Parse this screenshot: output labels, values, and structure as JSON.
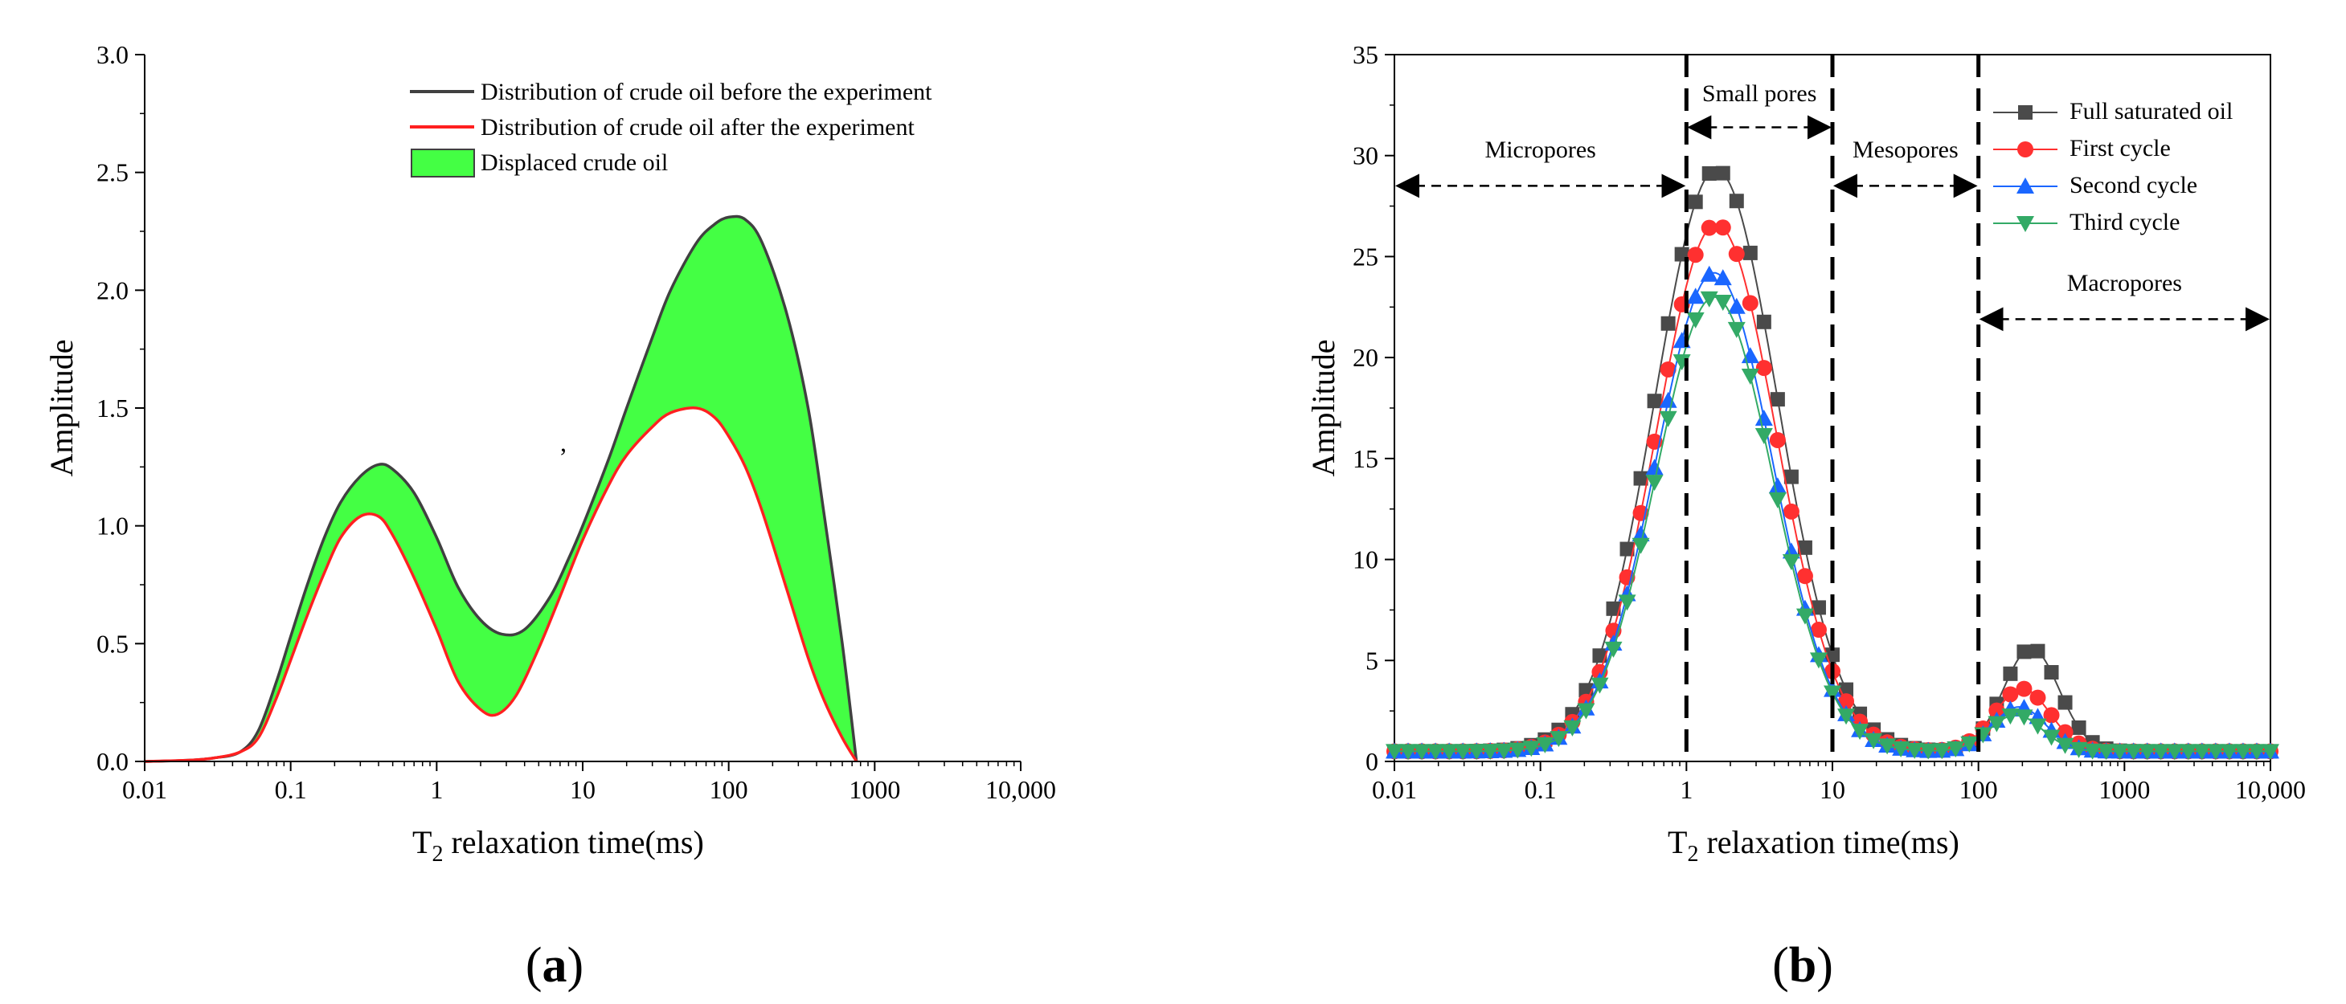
{
  "chart_data": [
    {
      "panel": "a",
      "type": "area",
      "panel_label_open": "(",
      "panel_label_letter": "a",
      "panel_label_close": ")",
      "xlabel_main": "T",
      "xlabel_sub": "2",
      "xlabel_rest": "  relaxation time(ms)",
      "ylabel": "Amplitude",
      "xscale": "log",
      "xlim": [
        0.01,
        10000
      ],
      "ylim": [
        0,
        3.0
      ],
      "x_tick_labels": [
        "0.01",
        "0.1",
        "1",
        "10",
        "100",
        "1000",
        "10,000"
      ],
      "y_tick_labels": [
        "0.0",
        "0.5",
        "1.0",
        "1.5",
        "2.0",
        "2.5",
        "3.0"
      ],
      "legend_position": "top-right",
      "series": [
        {
          "name": "Distribution of crude oil before the experiment",
          "color": "#404040",
          "x": [
            0.01,
            0.02,
            0.03,
            0.045,
            0.06,
            0.08,
            0.1,
            0.13,
            0.17,
            0.22,
            0.3,
            0.4,
            0.5,
            0.7,
            1.0,
            1.4,
            2.0,
            2.8,
            4.0,
            6.0,
            8.0,
            10,
            15,
            20,
            30,
            40,
            60,
            80,
            100,
            130,
            170,
            250,
            350,
            450,
            600,
            750
          ],
          "y": [
            0.0,
            0.005,
            0.015,
            0.04,
            0.13,
            0.34,
            0.53,
            0.75,
            0.95,
            1.1,
            1.21,
            1.26,
            1.24,
            1.14,
            0.95,
            0.74,
            0.6,
            0.54,
            0.56,
            0.7,
            0.86,
            1.0,
            1.28,
            1.5,
            1.8,
            2.0,
            2.2,
            2.28,
            2.31,
            2.3,
            2.2,
            1.9,
            1.5,
            1.05,
            0.5,
            0.0
          ]
        },
        {
          "name": "Distribution of crude oil after the experiment",
          "color": "#ff2020",
          "x": [
            0.01,
            0.02,
            0.03,
            0.045,
            0.06,
            0.08,
            0.1,
            0.13,
            0.17,
            0.22,
            0.3,
            0.4,
            0.5,
            0.7,
            1.0,
            1.4,
            2.0,
            2.6,
            3.5,
            5.0,
            7.0,
            10,
            15,
            20,
            30,
            40,
            60,
            80,
            100,
            130,
            170,
            250,
            350,
            450,
            600,
            750
          ],
          "y": [
            0.0,
            0.005,
            0.015,
            0.04,
            0.1,
            0.27,
            0.43,
            0.62,
            0.8,
            0.95,
            1.04,
            1.04,
            0.96,
            0.78,
            0.56,
            0.34,
            0.22,
            0.2,
            0.28,
            0.48,
            0.7,
            0.94,
            1.17,
            1.3,
            1.42,
            1.48,
            1.5,
            1.46,
            1.38,
            1.25,
            1.06,
            0.73,
            0.44,
            0.26,
            0.1,
            0.0
          ]
        },
        {
          "name": "Displaced crude oil",
          "color": "#44ff44",
          "fill_between": [
            "Distribution of crude oil before the experiment",
            "Distribution of crude oil after the experiment"
          ]
        }
      ]
    },
    {
      "panel": "b",
      "type": "line",
      "panel_label_open": "(",
      "panel_label_letter": "b",
      "panel_label_close": ")",
      "xlabel_main": "T",
      "xlabel_sub": "2",
      "xlabel_rest": " relaxation time(ms)",
      "ylabel": "Amplitude",
      "xscale": "log",
      "xlim": [
        0.01,
        10000
      ],
      "ylim": [
        0,
        35
      ],
      "x_tick_labels": [
        "0.01",
        "0.1",
        "1",
        "10",
        "100",
        "1000",
        "10,000"
      ],
      "y_tick_labels": [
        "0",
        "5",
        "10",
        "15",
        "20",
        "25",
        "30",
        "35"
      ],
      "legend_position": "top-right",
      "vertical_lines": [
        1,
        10,
        100
      ],
      "annotations": [
        {
          "text": "Micropores",
          "x_from": 0.01,
          "x_to": 1,
          "arrow_y": 28.5,
          "text_y": 29.9
        },
        {
          "text": "Small pores",
          "x_from": 1,
          "x_to": 10,
          "arrow_y": 31.4,
          "text_y": 32.7
        },
        {
          "text": "Mesopores",
          "x_from": 10,
          "x_to": 100,
          "arrow_y": 28.5,
          "text_y": 29.9
        },
        {
          "text": "Macropores",
          "x_from": 100,
          "x_to": 10000,
          "arrow_y": 21.9,
          "text_y": 23.3
        }
      ],
      "series": [
        {
          "name": "Full saturated oil",
          "color": "#4a4a4a",
          "marker": "square",
          "peak1": 29.3,
          "peak1_x": 1.6,
          "peak2": 5.6,
          "peak2_x": 230,
          "sigma1": 0.42,
          "sigma2": 0.19
        },
        {
          "name": "First cycle",
          "color": "#ff3030",
          "marker": "circle",
          "peak1": 26.6,
          "peak1_x": 1.6,
          "peak2": 3.6,
          "peak2_x": 200,
          "sigma1": 0.41,
          "sigma2": 0.19
        },
        {
          "name": "Second cycle",
          "color": "#1a66ff",
          "marker": "triangle-up",
          "peak1": 24.2,
          "peak1_x": 1.55,
          "peak2": 2.7,
          "peak2_x": 190,
          "sigma1": 0.4,
          "sigma2": 0.18
        },
        {
          "name": "Third cycle",
          "color": "#33aa66",
          "marker": "triangle-down",
          "peak1": 23.0,
          "peak1_x": 1.55,
          "peak2": 2.3,
          "peak2_x": 180,
          "sigma1": 0.4,
          "sigma2": 0.18
        }
      ],
      "baseline": 0.5
    }
  ]
}
